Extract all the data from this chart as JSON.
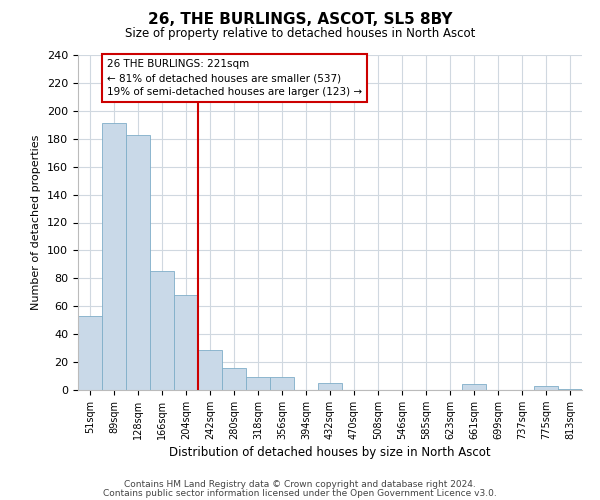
{
  "title": "26, THE BURLINGS, ASCOT, SL5 8BY",
  "subtitle": "Size of property relative to detached houses in North Ascot",
  "xlabel": "Distribution of detached houses by size in North Ascot",
  "ylabel": "Number of detached properties",
  "bar_labels": [
    "51sqm",
    "89sqm",
    "128sqm",
    "166sqm",
    "204sqm",
    "242sqm",
    "280sqm",
    "318sqm",
    "356sqm",
    "394sqm",
    "432sqm",
    "470sqm",
    "508sqm",
    "546sqm",
    "585sqm",
    "623sqm",
    "661sqm",
    "699sqm",
    "737sqm",
    "775sqm",
    "813sqm"
  ],
  "bar_values": [
    53,
    191,
    183,
    85,
    68,
    29,
    16,
    9,
    9,
    0,
    5,
    0,
    0,
    0,
    0,
    0,
    4,
    0,
    0,
    3,
    1
  ],
  "bar_color": "#c9d9e8",
  "bar_edge_color": "#7faec8",
  "vline_color": "#cc0000",
  "annotation_title": "26 THE BURLINGS: 221sqm",
  "annotation_line1": "← 81% of detached houses are smaller (537)",
  "annotation_line2": "19% of semi-detached houses are larger (123) →",
  "annotation_box_color": "#ffffff",
  "annotation_box_edge": "#cc0000",
  "ylim": [
    0,
    240
  ],
  "yticks": [
    0,
    20,
    40,
    60,
    80,
    100,
    120,
    140,
    160,
    180,
    200,
    220,
    240
  ],
  "footnote1": "Contains HM Land Registry data © Crown copyright and database right 2024.",
  "footnote2": "Contains public sector information licensed under the Open Government Licence v3.0.",
  "background_color": "#ffffff",
  "grid_color": "#d0d8e0"
}
